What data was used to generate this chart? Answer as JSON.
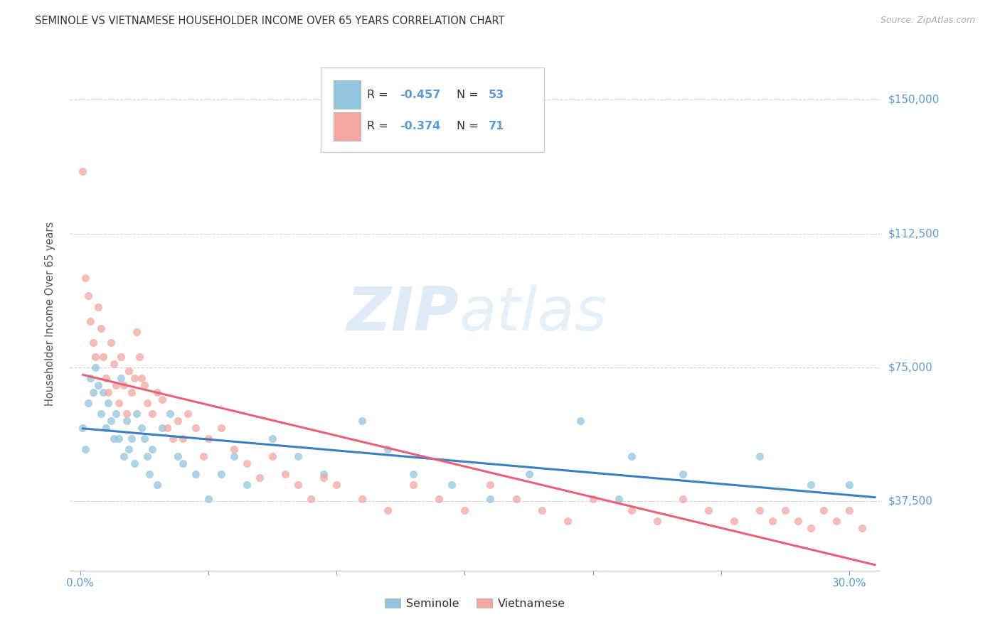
{
  "title": "SEMINOLE VS VIETNAMESE HOUSEHOLDER INCOME OVER 65 YEARS CORRELATION CHART",
  "source": "Source: ZipAtlas.com",
  "ylabel": "Householder Income Over 65 years",
  "ytick_labels": [
    "$37,500",
    "$75,000",
    "$112,500",
    "$150,000"
  ],
  "ytick_vals": [
    37500,
    75000,
    112500,
    150000
  ],
  "ylim": [
    18000,
    162000
  ],
  "xlim": [
    -0.004,
    0.312
  ],
  "seminole_R": "-0.457",
  "seminole_N": "53",
  "vietnamese_R": "-0.374",
  "vietnamese_N": "71",
  "seminole_color": "#92c5de",
  "vietnamese_color": "#f4a6a0",
  "seminole_line_color": "#3a7fc1",
  "vietnamese_line_color": "#e8607a",
  "watermark_zip": "ZIP",
  "watermark_atlas": "atlas",
  "legend_label1": "Seminole",
  "legend_label2": "Vietnamese",
  "seminole_x": [
    0.001,
    0.002,
    0.003,
    0.004,
    0.005,
    0.006,
    0.007,
    0.008,
    0.009,
    0.01,
    0.011,
    0.012,
    0.013,
    0.014,
    0.015,
    0.016,
    0.017,
    0.018,
    0.019,
    0.02,
    0.021,
    0.022,
    0.024,
    0.025,
    0.026,
    0.027,
    0.028,
    0.03,
    0.032,
    0.035,
    0.038,
    0.04,
    0.045,
    0.05,
    0.055,
    0.06,
    0.065,
    0.075,
    0.085,
    0.095,
    0.11,
    0.12,
    0.13,
    0.145,
    0.16,
    0.175,
    0.195,
    0.215,
    0.235,
    0.265,
    0.285,
    0.3,
    0.21
  ],
  "seminole_y": [
    58000,
    52000,
    65000,
    72000,
    68000,
    75000,
    70000,
    62000,
    68000,
    58000,
    65000,
    60000,
    55000,
    62000,
    55000,
    72000,
    50000,
    60000,
    52000,
    55000,
    48000,
    62000,
    58000,
    55000,
    50000,
    45000,
    52000,
    42000,
    58000,
    62000,
    50000,
    48000,
    45000,
    38000,
    45000,
    50000,
    42000,
    55000,
    50000,
    45000,
    60000,
    52000,
    45000,
    42000,
    38000,
    45000,
    60000,
    50000,
    45000,
    50000,
    42000,
    42000,
    38000
  ],
  "vietnamese_x": [
    0.001,
    0.002,
    0.003,
    0.004,
    0.005,
    0.006,
    0.007,
    0.008,
    0.009,
    0.01,
    0.011,
    0.012,
    0.013,
    0.014,
    0.015,
    0.016,
    0.017,
    0.018,
    0.019,
    0.02,
    0.021,
    0.022,
    0.023,
    0.024,
    0.025,
    0.026,
    0.028,
    0.03,
    0.032,
    0.034,
    0.036,
    0.038,
    0.04,
    0.042,
    0.045,
    0.048,
    0.05,
    0.055,
    0.06,
    0.065,
    0.07,
    0.075,
    0.08,
    0.085,
    0.09,
    0.095,
    0.1,
    0.11,
    0.12,
    0.13,
    0.14,
    0.15,
    0.16,
    0.17,
    0.18,
    0.19,
    0.2,
    0.215,
    0.225,
    0.235,
    0.245,
    0.255,
    0.265,
    0.27,
    0.275,
    0.28,
    0.285,
    0.29,
    0.295,
    0.3,
    0.305
  ],
  "vietnamese_y": [
    130000,
    100000,
    95000,
    88000,
    82000,
    78000,
    92000,
    86000,
    78000,
    72000,
    68000,
    82000,
    76000,
    70000,
    65000,
    78000,
    70000,
    62000,
    74000,
    68000,
    72000,
    85000,
    78000,
    72000,
    70000,
    65000,
    62000,
    68000,
    66000,
    58000,
    55000,
    60000,
    55000,
    62000,
    58000,
    50000,
    55000,
    58000,
    52000,
    48000,
    44000,
    50000,
    45000,
    42000,
    38000,
    44000,
    42000,
    38000,
    35000,
    42000,
    38000,
    35000,
    42000,
    38000,
    35000,
    32000,
    38000,
    35000,
    32000,
    38000,
    35000,
    32000,
    35000,
    32000,
    35000,
    32000,
    30000,
    35000,
    32000,
    35000,
    30000
  ]
}
